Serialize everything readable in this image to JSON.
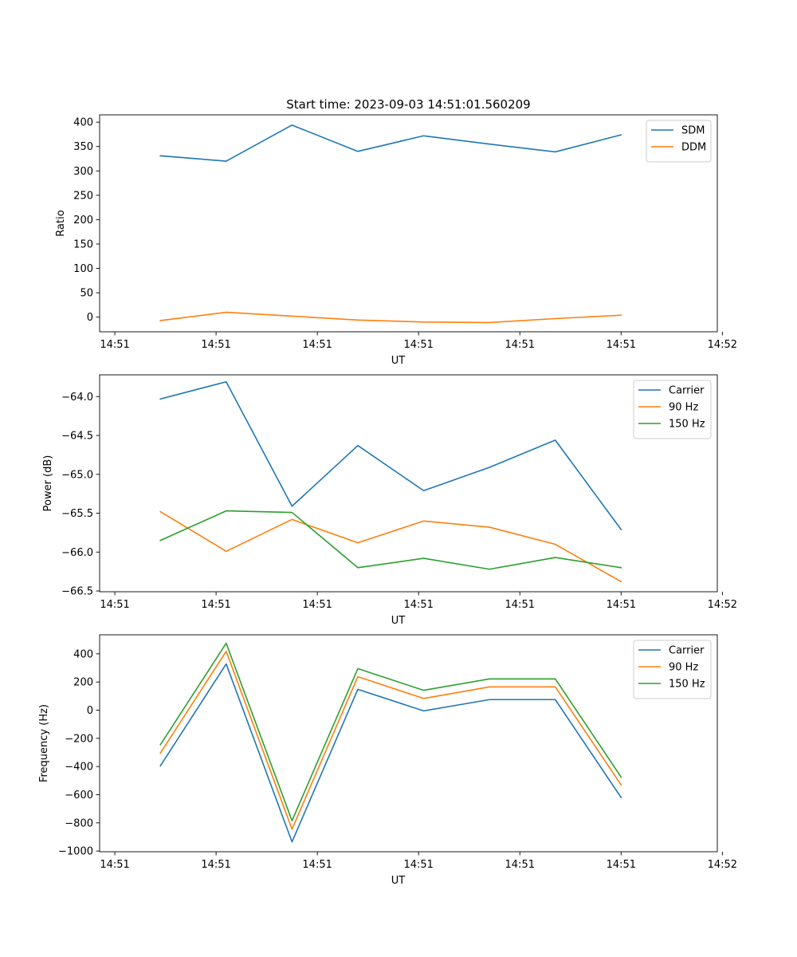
{
  "figure": {
    "title": "Start time: 2023-09-03 14:51:01.560209"
  },
  "chart_data": [
    {
      "type": "line",
      "id": "ratio",
      "xlabel": "UT",
      "ylabel": "Ratio",
      "x_tick_labels": [
        "14:51",
        "14:51",
        "14:51",
        "14:51",
        "14:51",
        "14:51",
        "14:52"
      ],
      "x": [
        0.45,
        1.1,
        1.75,
        2.4,
        3.05,
        3.7,
        4.35,
        5.0
      ],
      "xlim": [
        -0.15,
        5.95
      ],
      "ylim": [
        -30,
        415
      ],
      "yticks": [
        0,
        50,
        100,
        150,
        200,
        250,
        300,
        350,
        400
      ],
      "ytick_labels": [
        "0",
        "50",
        "100",
        "150",
        "200",
        "250",
        "300",
        "350",
        "400"
      ],
      "legend": "top-right",
      "series": [
        {
          "name": "SDM",
          "color": "#1f77b4",
          "values": [
            331,
            320,
            394,
            340,
            372,
            355,
            339,
            374
          ]
        },
        {
          "name": "DDM",
          "color": "#ff7f0e",
          "values": [
            -7,
            10,
            2,
            -6,
            -10,
            -11,
            -3,
            4
          ]
        }
      ]
    },
    {
      "type": "line",
      "id": "power",
      "xlabel": "UT",
      "ylabel": "Power (dB)",
      "x_tick_labels": [
        "14:51",
        "14:51",
        "14:51",
        "14:51",
        "14:51",
        "14:51",
        "14:52"
      ],
      "x": [
        0.45,
        1.1,
        1.75,
        2.4,
        3.05,
        3.7,
        4.35,
        5.0
      ],
      "xlim": [
        -0.15,
        5.95
      ],
      "ylim": [
        -66.51,
        -63.72
      ],
      "yticks": [
        -66.5,
        -66.0,
        -65.5,
        -65.0,
        -64.5,
        -64.0
      ],
      "ytick_labels": [
        "−66.5",
        "−66.0",
        "−65.5",
        "−65.0",
        "−64.5",
        "−64.0"
      ],
      "legend": "top-right",
      "series": [
        {
          "name": "Carrier",
          "color": "#1f77b4",
          "values": [
            -64.03,
            -63.81,
            -65.41,
            -64.63,
            -65.21,
            -64.91,
            -64.56,
            -65.71
          ]
        },
        {
          "name": "90 Hz",
          "color": "#ff7f0e",
          "values": [
            -65.48,
            -65.99,
            -65.58,
            -65.88,
            -65.6,
            -65.68,
            -65.9,
            -66.38
          ]
        },
        {
          "name": "150 Hz",
          "color": "#2ca02c",
          "values": [
            -65.85,
            -65.47,
            -65.49,
            -66.2,
            -66.08,
            -66.22,
            -66.07,
            -66.2
          ]
        }
      ]
    },
    {
      "type": "line",
      "id": "frequency",
      "xlabel": "UT",
      "ylabel": "Frequency (Hz)",
      "x_tick_labels": [
        "14:51",
        "14:51",
        "14:51",
        "14:51",
        "14:51",
        "14:51",
        "14:52"
      ],
      "x": [
        0.45,
        1.1,
        1.75,
        2.4,
        3.05,
        3.7,
        4.35,
        5.0
      ],
      "xlim": [
        -0.15,
        5.95
      ],
      "ylim": [
        -1005,
        535
      ],
      "yticks": [
        -1000,
        -800,
        -600,
        -400,
        -200,
        0,
        200,
        400
      ],
      "ytick_labels": [
        "−1000",
        "−800",
        "−600",
        "−400",
        "−200",
        "0",
        "200",
        "400"
      ],
      "legend": "top-right",
      "series": [
        {
          "name": "Carrier",
          "color": "#1f77b4",
          "values": [
            -395,
            328,
            -935,
            148,
            -5,
            75,
            75,
            -620
          ]
        },
        {
          "name": "90 Hz",
          "color": "#ff7f0e",
          "values": [
            -305,
            418,
            -845,
            238,
            83,
            165,
            165,
            -530
          ]
        },
        {
          "name": "150 Hz",
          "color": "#2ca02c",
          "values": [
            -245,
            475,
            -785,
            295,
            141,
            222,
            222,
            -475
          ]
        }
      ]
    }
  ]
}
